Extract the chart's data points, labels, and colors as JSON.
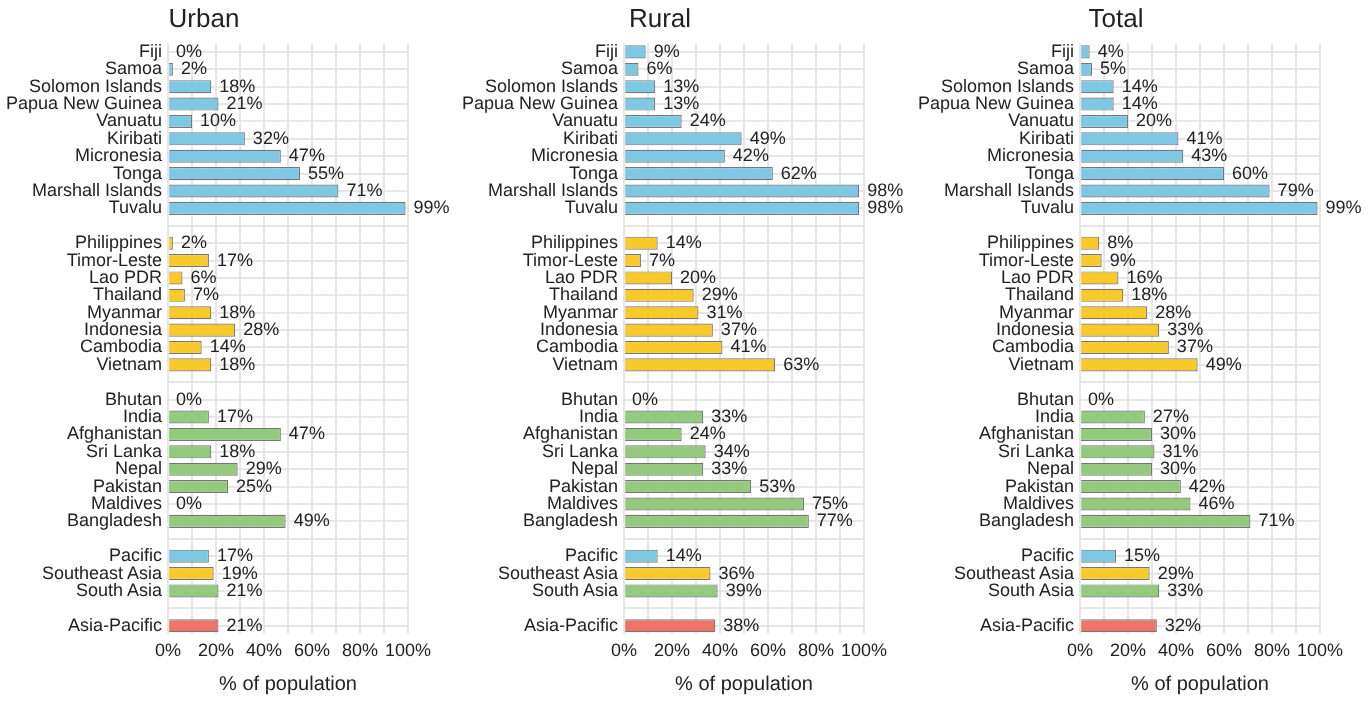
{
  "chart_data": [
    {
      "type": "bar",
      "orientation": "horizontal",
      "title": "Urban",
      "xlabel": "% of population",
      "grid": true,
      "categories": [
        "Fiji",
        "Samoa",
        "Solomon Islands",
        "Papua New Guinea",
        "Vanuatu",
        "Kiribati",
        "Micronesia",
        "Tonga",
        "Marshall Islands",
        "Tuvalu",
        null,
        "Philippines",
        "Timor-Leste",
        "Lao PDR",
        "Thailand",
        "Myanmar",
        "Indonesia",
        "Cambodia",
        "Vietnam",
        null,
        "Bhutan",
        "India",
        "Afghanistan",
        "Sri Lanka",
        "Nepal",
        "Pakistan",
        "Maldives",
        "Bangladesh",
        null,
        "Pacific",
        "Southeast Asia",
        "South Asia",
        null,
        "Asia-Pacific"
      ],
      "values": [
        0,
        2,
        18,
        21,
        10,
        32,
        47,
        55,
        71,
        99,
        null,
        2,
        17,
        6,
        7,
        18,
        28,
        14,
        18,
        null,
        0,
        17,
        47,
        18,
        29,
        25,
        0,
        49,
        null,
        17,
        19,
        21,
        null,
        21
      ],
      "value_labels": [
        "0%",
        "2%",
        "18%",
        "21%",
        "10%",
        "32%",
        "47%",
        "55%",
        "71%",
        "99%",
        null,
        "2%",
        "17%",
        "6%",
        "7%",
        "18%",
        "28%",
        "14%",
        "18%",
        null,
        "0%",
        "17%",
        "47%",
        "18%",
        "29%",
        "25%",
        "0%",
        "49%",
        null,
        "17%",
        "19%",
        "21%",
        null,
        "21%"
      ],
      "colors": [
        "#7ec8e3",
        "#7ec8e3",
        "#7ec8e3",
        "#7ec8e3",
        "#7ec8e3",
        "#7ec8e3",
        "#7ec8e3",
        "#7ec8e3",
        "#7ec8e3",
        "#7ec8e3",
        null,
        "#f9c928",
        "#f9c928",
        "#f9c928",
        "#f9c928",
        "#f9c928",
        "#f9c928",
        "#f9c928",
        "#f9c928",
        null,
        "#93ca7e",
        "#93ca7e",
        "#93ca7e",
        "#93ca7e",
        "#93ca7e",
        "#93ca7e",
        "#93ca7e",
        "#93ca7e",
        null,
        "#7ec8e3",
        "#f9c928",
        "#93ca7e",
        null,
        "#f0736a"
      ],
      "xlim": [
        0,
        100
      ],
      "xticks": [
        {
          "value": 0,
          "label": "0%"
        },
        {
          "value": 10,
          "label": null
        },
        {
          "value": 20,
          "label": "20%"
        },
        {
          "value": 30,
          "label": null
        },
        {
          "value": 40,
          "label": "40%"
        },
        {
          "value": 50,
          "label": null
        },
        {
          "value": 60,
          "label": "60%"
        },
        {
          "value": 70,
          "label": null
        },
        {
          "value": 80,
          "label": "80%"
        },
        {
          "value": 90,
          "label": null
        },
        {
          "value": 100,
          "label": "100%"
        }
      ]
    },
    {
      "type": "bar",
      "orientation": "horizontal",
      "title": "Rural",
      "xlabel": "% of population",
      "grid": true,
      "categories": [
        "Fiji",
        "Samoa",
        "Solomon Islands",
        "Papua New Guinea",
        "Vanuatu",
        "Kiribati",
        "Micronesia",
        "Tonga",
        "Marshall Islands",
        "Tuvalu",
        null,
        "Philippines",
        "Timor-Leste",
        "Lao PDR",
        "Thailand",
        "Myanmar",
        "Indonesia",
        "Cambodia",
        "Vietnam",
        null,
        "Bhutan",
        "India",
        "Afghanistan",
        "Sri Lanka",
        "Nepal",
        "Pakistan",
        "Maldives",
        "Bangladesh",
        null,
        "Pacific",
        "Southeast Asia",
        "South Asia",
        null,
        "Asia-Pacific"
      ],
      "values": [
        9,
        6,
        13,
        13,
        24,
        49,
        42,
        62,
        98,
        98,
        null,
        14,
        7,
        20,
        29,
        31,
        37,
        41,
        63,
        null,
        0,
        33,
        24,
        34,
        33,
        53,
        75,
        77,
        null,
        14,
        36,
        39,
        null,
        38
      ],
      "value_labels": [
        "9%",
        "6%",
        "13%",
        "13%",
        "24%",
        "49%",
        "42%",
        "62%",
        "98%",
        "98%",
        null,
        "14%",
        "7%",
        "20%",
        "29%",
        "31%",
        "37%",
        "41%",
        "63%",
        null,
        "0%",
        "33%",
        "24%",
        "34%",
        "33%",
        "53%",
        "75%",
        "77%",
        null,
        "14%",
        "36%",
        "39%",
        null,
        "38%"
      ],
      "colors": [
        "#7ec8e3",
        "#7ec8e3",
        "#7ec8e3",
        "#7ec8e3",
        "#7ec8e3",
        "#7ec8e3",
        "#7ec8e3",
        "#7ec8e3",
        "#7ec8e3",
        "#7ec8e3",
        null,
        "#f9c928",
        "#f9c928",
        "#f9c928",
        "#f9c928",
        "#f9c928",
        "#f9c928",
        "#f9c928",
        "#f9c928",
        null,
        "#93ca7e",
        "#93ca7e",
        "#93ca7e",
        "#93ca7e",
        "#93ca7e",
        "#93ca7e",
        "#93ca7e",
        "#93ca7e",
        null,
        "#7ec8e3",
        "#f9c928",
        "#93ca7e",
        null,
        "#f0736a"
      ],
      "xlim": [
        0,
        100
      ],
      "xticks": [
        {
          "value": 0,
          "label": "0%"
        },
        {
          "value": 10,
          "label": null
        },
        {
          "value": 20,
          "label": "20%"
        },
        {
          "value": 30,
          "label": null
        },
        {
          "value": 40,
          "label": "40%"
        },
        {
          "value": 50,
          "label": null
        },
        {
          "value": 60,
          "label": "60%"
        },
        {
          "value": 70,
          "label": null
        },
        {
          "value": 80,
          "label": "80%"
        },
        {
          "value": 90,
          "label": null
        },
        {
          "value": 100,
          "label": "100%"
        }
      ]
    },
    {
      "type": "bar",
      "orientation": "horizontal",
      "title": "Total",
      "xlabel": "% of population",
      "grid": true,
      "categories": [
        "Fiji",
        "Samoa",
        "Solomon Islands",
        "Papua New Guinea",
        "Vanuatu",
        "Kiribati",
        "Micronesia",
        "Tonga",
        "Marshall Islands",
        "Tuvalu",
        null,
        "Philippines",
        "Timor-Leste",
        "Lao PDR",
        "Thailand",
        "Myanmar",
        "Indonesia",
        "Cambodia",
        "Vietnam",
        null,
        "Bhutan",
        "India",
        "Afghanistan",
        "Sri Lanka",
        "Nepal",
        "Pakistan",
        "Maldives",
        "Bangladesh",
        null,
        "Pacific",
        "Southeast Asia",
        "South Asia",
        null,
        "Asia-Pacific"
      ],
      "values": [
        4,
        5,
        14,
        14,
        20,
        41,
        43,
        60,
        79,
        99,
        null,
        8,
        9,
        16,
        18,
        28,
        33,
        37,
        49,
        null,
        0,
        27,
        30,
        31,
        30,
        42,
        46,
        71,
        null,
        15,
        29,
        33,
        null,
        32
      ],
      "value_labels": [
        "4%",
        "5%",
        "14%",
        "14%",
        "20%",
        "41%",
        "43%",
        "60%",
        "79%",
        "99%",
        null,
        "8%",
        "9%",
        "16%",
        "18%",
        "28%",
        "33%",
        "37%",
        "49%",
        null,
        "0%",
        "27%",
        "30%",
        "31%",
        "30%",
        "42%",
        "46%",
        "71%",
        null,
        "15%",
        "29%",
        "33%",
        null,
        "32%"
      ],
      "colors": [
        "#7ec8e3",
        "#7ec8e3",
        "#7ec8e3",
        "#7ec8e3",
        "#7ec8e3",
        "#7ec8e3",
        "#7ec8e3",
        "#7ec8e3",
        "#7ec8e3",
        "#7ec8e3",
        null,
        "#f9c928",
        "#f9c928",
        "#f9c928",
        "#f9c928",
        "#f9c928",
        "#f9c928",
        "#f9c928",
        "#f9c928",
        null,
        "#93ca7e",
        "#93ca7e",
        "#93ca7e",
        "#93ca7e",
        "#93ca7e",
        "#93ca7e",
        "#93ca7e",
        "#93ca7e",
        null,
        "#7ec8e3",
        "#f9c928",
        "#93ca7e",
        null,
        "#f0736a"
      ],
      "xlim": [
        0,
        100
      ],
      "xticks": [
        {
          "value": 0,
          "label": "0%"
        },
        {
          "value": 10,
          "label": null
        },
        {
          "value": 20,
          "label": "20%"
        },
        {
          "value": 30,
          "label": null
        },
        {
          "value": 40,
          "label": "40%"
        },
        {
          "value": 50,
          "label": null
        },
        {
          "value": 60,
          "label": "60%"
        },
        {
          "value": 70,
          "label": null
        },
        {
          "value": 80,
          "label": "80%"
        },
        {
          "value": 90,
          "label": null
        },
        {
          "value": 100,
          "label": "100%"
        }
      ]
    }
  ]
}
